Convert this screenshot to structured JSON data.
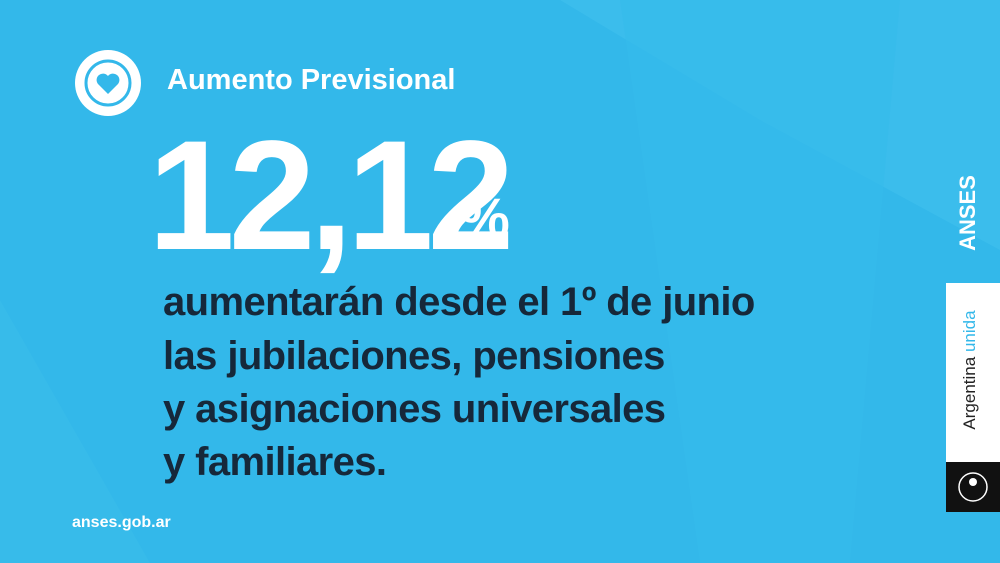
{
  "header": {
    "title": "Aumento Previsional"
  },
  "headline": {
    "number": "12,12",
    "unit": "%"
  },
  "body": [
    "aumentarán desde el 1º de junio",
    "las jubilaciones, pensiones",
    "y asignaciones universales",
    "y familiares."
  ],
  "footer": "anses.gob.ar",
  "side": {
    "brand": "ANSES",
    "slogan_1": "Argentina",
    "slogan_2": "unida"
  }
}
